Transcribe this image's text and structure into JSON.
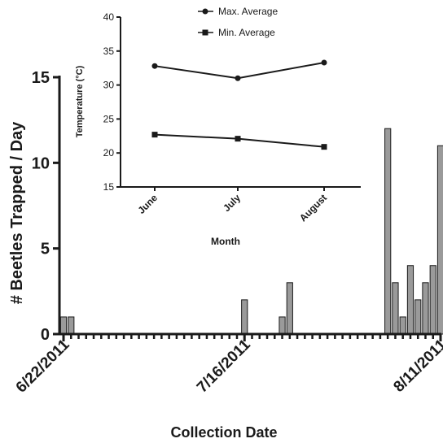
{
  "chart_data": [
    {
      "type": "bar",
      "ylabel": "# Beetles Trapped / Day",
      "xlabel": "Collection Date",
      "ylim": [
        0,
        15
      ],
      "yticks": [
        0,
        5,
        10,
        15
      ],
      "x_tick_labels": [
        "6/22/2011",
        "7/16/2011",
        "8/11/2011"
      ],
      "x_range_days": [
        0,
        50
      ],
      "x_tick_days": [
        0,
        24,
        50
      ],
      "bars": [
        {
          "day": 0,
          "value": 1
        },
        {
          "day": 1,
          "value": 1
        },
        {
          "day": 24,
          "value": 2
        },
        {
          "day": 29,
          "value": 1
        },
        {
          "day": 30,
          "value": 3
        },
        {
          "day": 43,
          "value": 12
        },
        {
          "day": 44,
          "value": 3
        },
        {
          "day": 45,
          "value": 1
        },
        {
          "day": 46,
          "value": 4
        },
        {
          "day": 47,
          "value": 2
        },
        {
          "day": 48,
          "value": 3
        },
        {
          "day": 49,
          "value": 4
        },
        {
          "day": 50,
          "value": 11
        }
      ],
      "colors": {
        "bar_fill": "#9a9a9a",
        "bar_stroke": "#1a1a1a"
      }
    },
    {
      "type": "line",
      "xlabel": "Month",
      "ylabel": "Temperature (°C)",
      "categories": [
        "June",
        "July",
        "August"
      ],
      "ylim": [
        15,
        40
      ],
      "yticks": [
        15,
        20,
        25,
        30,
        35,
        40
      ],
      "series": [
        {
          "name": "Max. Average",
          "marker": "circle",
          "values": [
            32.8,
            31.0,
            33.3
          ]
        },
        {
          "name": "Min. Average",
          "marker": "square",
          "values": [
            22.7,
            22.1,
            20.9
          ]
        }
      ],
      "legend": "top",
      "colors": {
        "line": "#1a1a1a"
      }
    }
  ]
}
